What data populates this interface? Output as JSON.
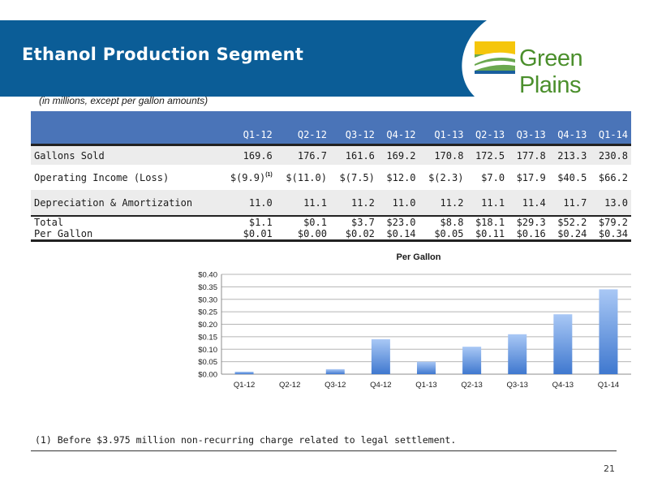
{
  "header": {
    "title": "Ethanol Production Segment",
    "logo_text": "Green Plains"
  },
  "note": "(in millions, except per gallon amounts)",
  "table": {
    "columns": [
      "Q1-12",
      "Q2-12",
      "Q3-12",
      "Q4-12",
      "Q1-13",
      "Q2-13",
      "Q3-13",
      "Q4-13",
      "Q1-14"
    ],
    "rows": [
      {
        "label": "Gallons Sold",
        "values": [
          "169.6",
          "176.7",
          "161.6",
          "169.2",
          "170.8",
          "172.5",
          "177.8",
          "213.3",
          "230.8"
        ]
      },
      {
        "label": "Operating Income (Loss)",
        "values": [
          "$(9.9)",
          "$(11.0)",
          "$(7.5)",
          "$12.0",
          "$(2.3)",
          "$7.0",
          "$17.9",
          "$40.5",
          "$66.2"
        ],
        "first_value_superscript": "(1)"
      },
      {
        "label": "Depreciation & Amortization",
        "values": [
          "11.0",
          "11.1",
          "11.2",
          "11.0",
          "11.2",
          "11.1",
          "11.4",
          "11.7",
          "13.0"
        ]
      },
      {
        "label": "Total",
        "values": [
          "$1.1",
          "$0.1",
          "$3.7",
          "$23.0",
          "$8.8",
          "$18.1",
          "$29.3",
          "$52.2",
          "$79.2"
        ]
      },
      {
        "label": "Per Gallon",
        "values": [
          "$0.01",
          "$0.00",
          "$0.02",
          "$0.14",
          "$0.05",
          "$0.11",
          "$0.16",
          "$0.24",
          "$0.34"
        ]
      }
    ]
  },
  "chart_data": {
    "type": "bar",
    "title": "Per Gallon",
    "categories": [
      "Q1-12",
      "Q2-12",
      "Q3-12",
      "Q4-12",
      "Q1-13",
      "Q2-13",
      "Q3-13",
      "Q4-13",
      "Q1-14"
    ],
    "values": [
      0.01,
      0.0,
      0.02,
      0.14,
      0.05,
      0.11,
      0.16,
      0.24,
      0.34
    ],
    "ylim": [
      0,
      0.4
    ],
    "yticks": [
      0.0,
      0.05,
      0.1,
      0.15,
      0.2,
      0.25,
      0.3,
      0.35,
      0.4
    ],
    "ytick_labels": [
      "$0.00",
      "$0.05",
      "$0.10",
      "$0.15",
      "$0.20",
      "$0.25",
      "$0.30",
      "$0.35",
      "$0.40"
    ],
    "xlabel": "",
    "ylabel": "",
    "grid": true,
    "bar_color_top": "#a9c8f5",
    "bar_color_bottom": "#3f78cf"
  },
  "footnote": "(1) Before $3.975 million non-recurring charge related to legal settlement.",
  "page_number": "21",
  "colors": {
    "header_bg": "#0b5d97",
    "table_header_bg": "#4a74b8",
    "brand_green": "#4b8f2c"
  }
}
